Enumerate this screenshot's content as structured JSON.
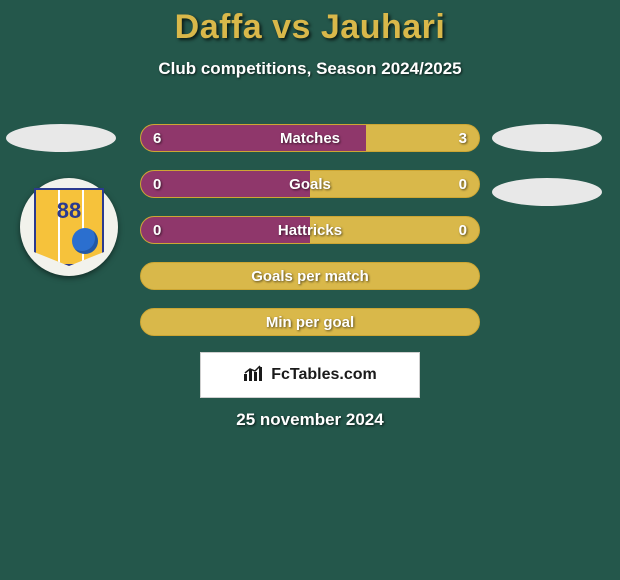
{
  "colors": {
    "background": "#24574b",
    "title": "#d9b84a",
    "left_bar": "#8f376b",
    "right_bar": "#cda633",
    "right_bar_fill": "#d9b84a",
    "ellipse": "#e8e8e8",
    "badge_bg": "#f2f2ec",
    "badge_shield": "#f6c23b",
    "badge_border": "#2b3a8f",
    "badge_ball": "#2b6fcf"
  },
  "title": "Daffa vs Jauhari",
  "subtitle": "Club competitions, Season 2024/2025",
  "badge_number": "88",
  "attribution": "FcTables.com",
  "date": "25 november 2024",
  "rows": [
    {
      "label": "Matches",
      "left_val": "6",
      "right_val": "3",
      "left_pct": 66.7,
      "right_pct": 33.3
    },
    {
      "label": "Goals",
      "left_val": "0",
      "right_val": "0",
      "left_pct": 50,
      "right_pct": 50
    },
    {
      "label": "Hattricks",
      "left_val": "0",
      "right_val": "0",
      "left_pct": 50,
      "right_pct": 50
    },
    {
      "label": "Goals per match",
      "left_val": "",
      "right_val": "",
      "left_pct": 0,
      "right_pct": 100
    },
    {
      "label": "Min per goal",
      "left_val": "",
      "right_val": "",
      "left_pct": 0,
      "right_pct": 100
    }
  ]
}
